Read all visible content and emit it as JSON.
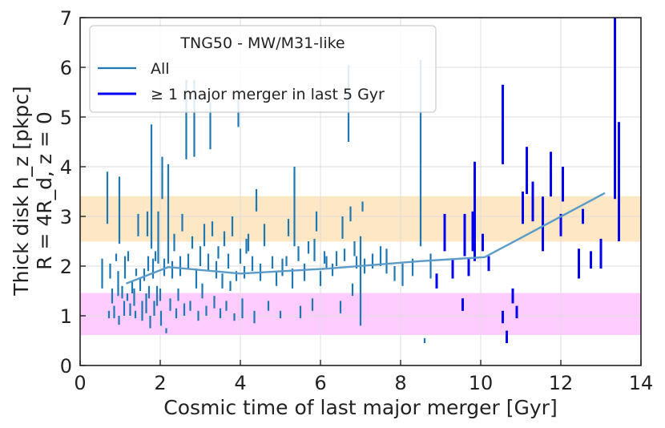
{
  "chart_data": {
    "type": "errorbar+line",
    "xlabel": "Cosmic time of last major merger [Gyr]",
    "ylabel_line1": "Thick disk h_z [pkpc]",
    "ylabel_line2": "R = 4R_d, z = 0",
    "xlim": [
      0,
      14
    ],
    "ylim": [
      0,
      7
    ],
    "xticks": [
      "0",
      "2",
      "4",
      "6",
      "8",
      "10",
      "12",
      "14"
    ],
    "yticks": [
      "0",
      "1",
      "2",
      "3",
      "4",
      "5",
      "6",
      "7"
    ],
    "grid": true,
    "legend": {
      "position": "top-left",
      "title": "TNG50 - MW/M31-like",
      "entries": [
        {
          "label": "All",
          "color": "#1f77b4"
        },
        {
          "label": "≥ 1 major merger in last 5 Gyr",
          "color": "#0000ee"
        }
      ]
    },
    "bands": [
      {
        "name": "thick-disk-band",
        "y0": 2.5,
        "y1": 3.4,
        "color": "#fde7c4"
      },
      {
        "name": "thin-disk-band",
        "y0": 0.62,
        "y1": 1.45,
        "color": "#ffccff"
      }
    ],
    "median_line": {
      "color": "#5b9bc8",
      "x": [
        1.15,
        2.2,
        4.0,
        6.2,
        8.5,
        10.1,
        13.1
      ],
      "y": [
        1.65,
        1.98,
        1.85,
        1.95,
        2.1,
        2.18,
        3.47
      ]
    },
    "series_all": {
      "name": "All",
      "color": "#1f77b4",
      "points": [
        [
          0.55,
          1.55,
          2.15
        ],
        [
          0.68,
          2.85,
          3.9
        ],
        [
          0.72,
          0.95,
          1.1
        ],
        [
          0.75,
          1.75,
          2.05
        ],
        [
          0.8,
          1.25,
          1.55
        ],
        [
          0.85,
          0.95,
          1.2
        ],
        [
          0.9,
          2.1,
          2.25
        ],
        [
          0.95,
          1.4,
          1.9
        ],
        [
          0.97,
          0.82,
          1.0
        ],
        [
          0.98,
          2.45,
          3.8
        ],
        [
          1.05,
          1.35,
          1.6
        ],
        [
          1.1,
          1.0,
          1.3
        ],
        [
          1.12,
          1.75,
          2.2
        ],
        [
          1.18,
          1.3,
          1.45
        ],
        [
          1.2,
          2.1,
          2.3
        ],
        [
          1.25,
          1.0,
          1.25
        ],
        [
          1.3,
          1.45,
          1.7
        ],
        [
          1.35,
          1.2,
          1.55
        ],
        [
          1.38,
          0.95,
          1.1
        ],
        [
          1.4,
          1.8,
          1.95
        ],
        [
          1.45,
          2.6,
          3.05
        ],
        [
          1.5,
          1.5,
          1.75
        ],
        [
          1.55,
          0.9,
          1.3
        ],
        [
          1.6,
          1.7,
          1.95
        ],
        [
          1.65,
          1.05,
          1.45
        ],
        [
          1.68,
          2.6,
          3.1
        ],
        [
          1.7,
          1.9,
          2.2
        ],
        [
          1.72,
          1.35,
          1.6
        ],
        [
          1.75,
          0.75,
          1.0
        ],
        [
          1.78,
          2.35,
          4.85
        ],
        [
          1.82,
          1.75,
          2.15
        ],
        [
          1.85,
          1.0,
          1.3
        ],
        [
          1.88,
          2.1,
          2.3
        ],
        [
          1.92,
          1.2,
          1.6
        ],
        [
          1.95,
          2.05,
          3.1
        ],
        [
          2.0,
          1.3,
          1.55
        ],
        [
          2.02,
          0.8,
          1.1
        ],
        [
          2.05,
          3.35,
          4.2
        ],
        [
          2.1,
          1.8,
          2.15
        ],
        [
          2.15,
          0.65,
          0.75
        ],
        [
          2.2,
          2.05,
          4.05
        ],
        [
          2.25,
          1.1,
          1.35
        ],
        [
          2.3,
          1.75,
          2.1
        ],
        [
          2.35,
          2.3,
          2.65
        ],
        [
          2.4,
          0.95,
          1.15
        ],
        [
          2.45,
          1.3,
          1.55
        ],
        [
          2.5,
          1.8,
          2.2
        ],
        [
          2.55,
          2.7,
          3.05
        ],
        [
          2.6,
          1.0,
          1.25
        ],
        [
          2.65,
          4.15,
          5.75
        ],
        [
          2.7,
          1.95,
          2.25
        ],
        [
          2.75,
          1.1,
          1.3
        ],
        [
          2.8,
          2.35,
          2.6
        ],
        [
          2.85,
          4.2,
          5.75
        ],
        [
          2.9,
          1.55,
          1.95
        ],
        [
          2.95,
          0.9,
          1.1
        ],
        [
          3.0,
          2.0,
          2.4
        ],
        [
          3.05,
          1.35,
          1.65
        ],
        [
          3.1,
          2.4,
          2.85
        ],
        [
          3.15,
          1.0,
          1.2
        ],
        [
          3.2,
          1.9,
          2.25
        ],
        [
          3.25,
          4.35,
          5.3
        ],
        [
          3.3,
          2.6,
          2.9
        ],
        [
          3.35,
          1.15,
          1.4
        ],
        [
          3.4,
          1.75,
          2.1
        ],
        [
          3.45,
          2.15,
          2.4
        ],
        [
          3.5,
          0.95,
          1.15
        ],
        [
          3.55,
          1.55,
          1.85
        ],
        [
          3.6,
          2.4,
          2.7
        ],
        [
          3.65,
          1.1,
          1.3
        ],
        [
          3.7,
          1.95,
          2.25
        ],
        [
          3.75,
          1.5,
          1.7
        ],
        [
          3.8,
          2.6,
          3.0
        ],
        [
          3.85,
          0.9,
          1.05
        ],
        [
          3.9,
          1.7,
          1.9
        ],
        [
          3.95,
          4.8,
          5.55
        ],
        [
          4.0,
          2.05,
          2.35
        ],
        [
          4.05,
          0.95,
          1.35
        ],
        [
          4.1,
          1.75,
          2.0
        ],
        [
          4.15,
          2.25,
          2.55
        ],
        [
          4.2,
          2.3,
          2.65
        ],
        [
          4.3,
          1.9,
          2.2
        ],
        [
          4.35,
          0.85,
          1.1
        ],
        [
          4.4,
          3.1,
          3.55
        ],
        [
          4.5,
          1.7,
          2.05
        ],
        [
          4.6,
          2.4,
          2.85
        ],
        [
          4.7,
          1.1,
          1.3
        ],
        [
          4.8,
          1.95,
          2.2
        ],
        [
          4.9,
          1.6,
          1.9
        ],
        [
          5.0,
          0.95,
          1.1
        ],
        [
          5.05,
          1.8,
          2.15
        ],
        [
          5.15,
          2.0,
          2.2
        ],
        [
          5.2,
          2.6,
          2.95
        ],
        [
          5.3,
          1.55,
          1.95
        ],
        [
          5.35,
          2.4,
          4.0
        ],
        [
          5.45,
          2.1,
          2.4
        ],
        [
          5.5,
          0.95,
          1.2
        ],
        [
          5.6,
          1.7,
          2.05
        ],
        [
          5.7,
          2.25,
          2.5
        ],
        [
          5.8,
          1.1,
          1.35
        ],
        [
          5.85,
          2.1,
          2.55
        ],
        [
          5.9,
          2.7,
          3.1
        ],
        [
          6.0,
          1.6,
          1.9
        ],
        [
          6.1,
          2.05,
          2.3
        ],
        [
          6.15,
          1.95,
          2.2
        ],
        [
          6.3,
          1.8,
          2.05
        ],
        [
          6.4,
          2.0,
          2.3
        ],
        [
          6.5,
          1.05,
          1.3
        ],
        [
          6.55,
          2.55,
          3.0
        ],
        [
          6.6,
          2.1,
          2.35
        ],
        [
          6.7,
          4.5,
          6.05
        ],
        [
          6.75,
          2.9,
          3.2
        ],
        [
          6.8,
          1.4,
          1.65
        ],
        [
          6.85,
          2.2,
          2.5
        ],
        [
          6.9,
          1.95,
          2.2
        ],
        [
          7.0,
          0.8,
          2.6
        ],
        [
          7.05,
          3.1,
          3.3
        ],
        [
          7.1,
          1.85,
          2.15
        ],
        [
          7.3,
          1.95,
          2.25
        ],
        [
          7.5,
          2.0,
          2.4
        ],
        [
          7.65,
          1.85,
          2.35
        ],
        [
          7.85,
          1.7,
          2.0
        ],
        [
          8.05,
          1.6,
          2.05
        ],
        [
          8.3,
          1.8,
          2.15
        ],
        [
          8.5,
          2.4,
          6.15
        ],
        [
          8.6,
          0.45,
          0.55
        ],
        [
          8.75,
          1.75,
          2.25
        ]
      ]
    },
    "series_major": {
      "name": "≥ 1 major merger in last 5 Gyr",
      "color": "#0000ee",
      "points": [
        [
          8.9,
          1.55,
          1.85
        ],
        [
          9.1,
          2.3,
          3.05
        ],
        [
          9.3,
          1.75,
          2.15
        ],
        [
          9.55,
          1.1,
          1.35
        ],
        [
          9.6,
          2.2,
          3.05
        ],
        [
          9.7,
          1.8,
          2.15
        ],
        [
          9.8,
          2.3,
          3.1
        ],
        [
          9.85,
          2.1,
          4.1
        ],
        [
          10.05,
          2.3,
          2.65
        ],
        [
          10.2,
          1.9,
          2.2
        ],
        [
          10.55,
          4.05,
          5.65
        ],
        [
          10.55,
          0.85,
          1.1
        ],
        [
          10.65,
          0.45,
          0.7
        ],
        [
          10.8,
          1.25,
          1.55
        ],
        [
          10.9,
          0.95,
          1.2
        ],
        [
          11.05,
          2.85,
          3.5
        ],
        [
          11.15,
          3.45,
          4.4
        ],
        [
          11.3,
          2.9,
          3.7
        ],
        [
          11.55,
          2.3,
          3.4
        ],
        [
          11.75,
          3.4,
          4.3
        ],
        [
          12.0,
          2.6,
          3.05
        ],
        [
          12.05,
          3.3,
          4.0
        ],
        [
          12.45,
          1.75,
          2.35
        ],
        [
          12.55,
          2.85,
          3.15
        ],
        [
          12.75,
          1.95,
          2.3
        ],
        [
          13.0,
          1.95,
          2.55
        ],
        [
          13.35,
          3.35,
          7.0
        ],
        [
          13.45,
          2.5,
          4.9
        ]
      ]
    }
  }
}
